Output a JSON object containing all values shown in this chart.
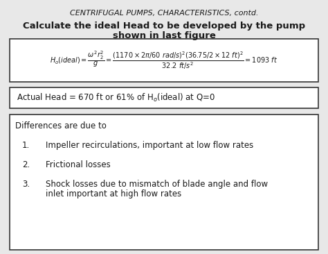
{
  "title_top": "CENTRIFUGAL PUMPS, CHARACTERISTICS, contd.",
  "title_bold_line1": "Calculate the ideal Head to be developed by the pump",
  "title_bold_line2": "shown in last figure",
  "box2_text": "Actual Head = 670 ft or 61% of H",
  "box2_sub": "o",
  "box2_text2": "(ideal) at Q=0",
  "box3_title": "Differences are due to",
  "item1": "Impeller recirculations, important at low flow rates",
  "item2": "Frictional losses",
  "item3_line1": "Shock losses due to mismatch of blade angle and flow",
  "item3_line2": "inlet important at high flow rates",
  "bg_color": "#e8e8e8",
  "box_face": "#ffffff",
  "text_color": "#1a1a1a",
  "box_edge_color": "#333333",
  "title_fontsize": 8.0,
  "bold_fontsize": 9.5,
  "body_fontsize": 8.5,
  "formula_fontsize": 7.0
}
